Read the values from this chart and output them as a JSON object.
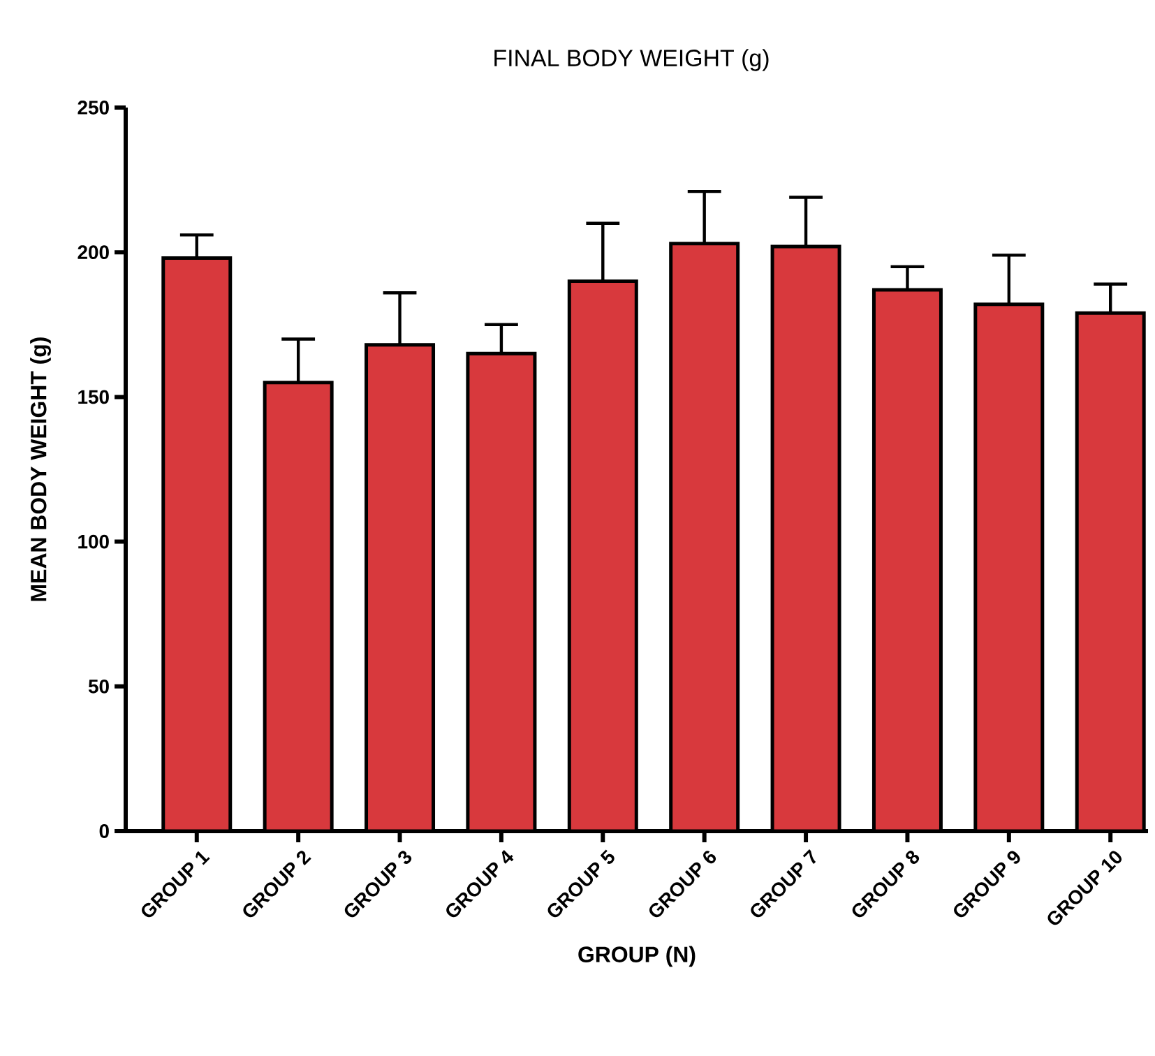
{
  "chart_data": {
    "type": "bar",
    "title": "FINAL BODY WEIGHT (g)",
    "xlabel": "GROUP (N)",
    "ylabel": "MEAN BODY WEIGHT (g)",
    "categories": [
      "GROUP 1",
      "GROUP 2",
      "GROUP 3",
      "GROUP 4",
      "GROUP 5",
      "GROUP 6",
      "GROUP 7",
      "GROUP 8",
      "GROUP 9",
      "GROUP 10"
    ],
    "values": [
      198,
      155,
      168,
      165,
      190,
      203,
      202,
      187,
      182,
      179
    ],
    "errors": [
      [
        198,
        206
      ],
      [
        155,
        170
      ],
      [
        168,
        186
      ],
      [
        165,
        175
      ],
      [
        190,
        210
      ],
      [
        203,
        221
      ],
      [
        202,
        219
      ],
      [
        187,
        195
      ],
      [
        182,
        199
      ],
      [
        179,
        189
      ]
    ],
    "color": "#d8393d",
    "ylim": [
      0,
      250
    ],
    "yticks": [
      0,
      50,
      100,
      150,
      200,
      250
    ]
  }
}
